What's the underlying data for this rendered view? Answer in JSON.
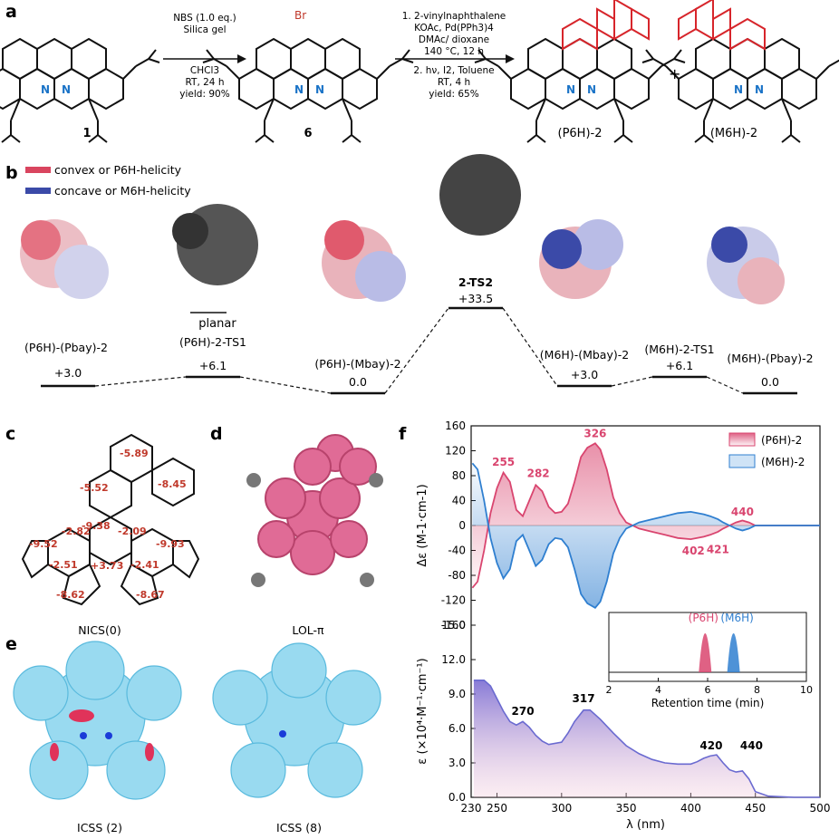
{
  "panels": {
    "a": "a",
    "b": "b",
    "c": "c",
    "d": "d",
    "e": "e",
    "f": "f"
  },
  "scheme": {
    "step1_conditions": [
      "NBS (1.0 eq.)",
      "Silica gel",
      "CHCl3",
      "RT, 24 h",
      "yield: 90%"
    ],
    "step2_conditions": [
      "1. 2-vinylnaphthalene",
      "KOAc, Pd(PPh3)4",
      "DMAc/ dioxane",
      "140 °C, 12 h",
      "2. hν, I2, Toluene",
      "RT, 4 h",
      "yield: 65%"
    ],
    "compound1": "1",
    "compound6": "6",
    "product_P": "(P6H)-2",
    "product_M": "(M6H)-2",
    "plus": "+",
    "bromine": "Br",
    "nitrogen": "N"
  },
  "legend": {
    "convex": "convex or P6H-helicity",
    "concave": "concave or M6H-helicity",
    "convex_color": "#d9455f",
    "concave_color": "#3b4aa8"
  },
  "energy_diagram": {
    "states": [
      {
        "label": "(P6H)-(Pbay)-2",
        "energy": "+3.0"
      },
      {
        "label": "(P6H)-2-TS1",
        "energy": "+6.1"
      },
      {
        "label": "(P6H)-(Mbay)-2",
        "energy": "0.0"
      },
      {
        "label": "2-TS2",
        "energy": "+33.5"
      },
      {
        "label": "(M6H)-(Mbay)-2",
        "energy": "+3.0"
      },
      {
        "label": "(M6H)-2-TS1",
        "energy": "+6.1"
      },
      {
        "label": "(M6H)-(Pbay)-2",
        "energy": "0.0"
      }
    ],
    "planar": "planar",
    "helicity_labels": [
      "P6H",
      "Pbay",
      "P6H",
      "P6H",
      "Mbay",
      "M6H",
      "Mbay",
      "M6H",
      "Pbay"
    ]
  },
  "nics": {
    "title": "NICS(0)",
    "values": [
      "-5.89",
      "-5.52",
      "-8.45",
      "-9.38",
      "-9.52",
      "-2.82",
      "-2.09",
      "-9.93",
      "-2.51",
      "+3.73",
      "-2.41",
      "-8.62",
      "-8.67"
    ]
  },
  "lol": {
    "title": "LOL-π"
  },
  "icss": {
    "left": "ICSS (2)",
    "right": "ICSS (8)"
  },
  "chart_data": [
    {
      "type": "line",
      "title": "",
      "xlabel": "",
      "ylabel": "Δε (M-1·cm-1)",
      "xlim": [
        230,
        500
      ],
      "ylim": [
        -160,
        160
      ],
      "yticks": [
        "160",
        "120",
        "80",
        "40",
        "0",
        "-40",
        "-80",
        "-120",
        "-160"
      ],
      "legend": [
        "(P6H)-2",
        "(M6H)-2"
      ],
      "legend_position": "top-right",
      "series": [
        {
          "name": "(P6H)-2",
          "color": "#d9456f",
          "x": [
            231,
            235,
            240,
            245,
            250,
            255,
            260,
            265,
            270,
            275,
            280,
            285,
            290,
            295,
            300,
            305,
            310,
            315,
            320,
            326,
            330,
            335,
            340,
            345,
            350,
            360,
            370,
            380,
            390,
            400,
            410,
            415,
            421,
            425,
            430,
            435,
            440,
            445,
            450,
            460,
            470,
            480,
            500
          ],
          "y": [
            -100,
            -90,
            -40,
            20,
            60,
            85,
            70,
            25,
            15,
            40,
            65,
            55,
            30,
            20,
            22,
            35,
            70,
            110,
            125,
            132,
            122,
            90,
            45,
            20,
            5,
            -5,
            -10,
            -15,
            -20,
            -22,
            -18,
            -15,
            -10,
            -5,
            0,
            5,
            8,
            5,
            0,
            0,
            0,
            0,
            0
          ]
        },
        {
          "name": "(M6H)-2",
          "color": "#2f7fd0",
          "x": [
            231,
            235,
            240,
            245,
            250,
            255,
            260,
            265,
            270,
            275,
            280,
            285,
            290,
            295,
            300,
            305,
            310,
            315,
            320,
            326,
            330,
            335,
            340,
            345,
            350,
            360,
            370,
            380,
            390,
            400,
            410,
            415,
            421,
            425,
            430,
            435,
            440,
            445,
            450,
            460,
            470,
            480,
            500
          ],
          "y": [
            100,
            90,
            40,
            -20,
            -60,
            -85,
            -70,
            -25,
            -15,
            -40,
            -65,
            -55,
            -30,
            -20,
            -22,
            -35,
            -70,
            -110,
            -125,
            -132,
            -122,
            -90,
            -45,
            -20,
            -5,
            5,
            10,
            15,
            20,
            22,
            18,
            15,
            10,
            5,
            0,
            -5,
            -8,
            -5,
            0,
            0,
            0,
            0,
            0
          ]
        }
      ],
      "annotations": [
        "255",
        "282",
        "326",
        "402",
        "421",
        "440"
      ]
    },
    {
      "type": "area",
      "title": "",
      "xlabel": "λ (nm)",
      "ylabel": "ε (×10⁴·M⁻¹·cm⁻¹)",
      "xlim": [
        230,
        500
      ],
      "ylim": [
        0,
        15
      ],
      "xticks": [
        "230",
        "250",
        "300",
        "350",
        "400",
        "450",
        "500"
      ],
      "yticks": [
        "0.0",
        "3.0",
        "6.0",
        "9.0",
        "12.0",
        "15.0"
      ],
      "series": [
        {
          "name": "",
          "color": "#6a6ad0",
          "x": [
            232,
            240,
            245,
            250,
            255,
            260,
            265,
            270,
            275,
            280,
            285,
            290,
            300,
            305,
            310,
            317,
            322,
            330,
            340,
            350,
            360,
            370,
            380,
            390,
            400,
            405,
            410,
            415,
            420,
            425,
            430,
            435,
            440,
            445,
            450,
            460,
            480,
            500
          ],
          "y": [
            10.2,
            10.2,
            9.7,
            8.6,
            7.5,
            6.6,
            6.3,
            6.6,
            6.1,
            5.4,
            4.9,
            4.6,
            4.8,
            5.6,
            6.6,
            7.6,
            7.6,
            6.8,
            5.6,
            4.5,
            3.8,
            3.3,
            3.0,
            2.9,
            2.9,
            3.1,
            3.4,
            3.6,
            3.7,
            3.0,
            2.4,
            2.2,
            2.3,
            1.6,
            0.5,
            0.1,
            0,
            0
          ]
        }
      ],
      "annotations": [
        "270",
        "317",
        "420",
        "440"
      ]
    },
    {
      "type": "line",
      "title": "",
      "xlabel": "Retention time (min)",
      "xlim": [
        2,
        10
      ],
      "xticks": [
        "2",
        "4",
        "6",
        "8",
        "10"
      ],
      "series": [
        {
          "name": "(P6H)",
          "color": "#d9456f",
          "peak": 5.9
        },
        {
          "name": "(M6H)",
          "color": "#2f7fd0",
          "peak": 7.05
        }
      ]
    }
  ]
}
